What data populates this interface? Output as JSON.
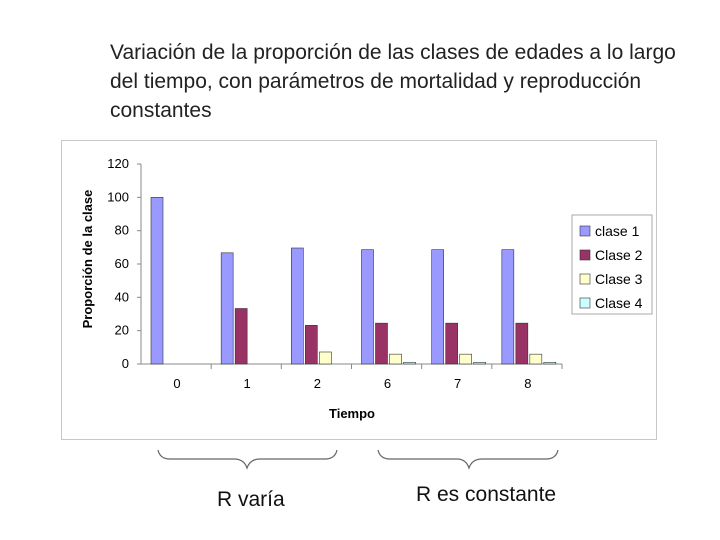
{
  "slide": {
    "title": "Variación de la proporción de las clases de edades a lo largo del tiempo, con parámetros de mortalidad y reproducción constantes"
  },
  "annotations": {
    "left_label": "R varía",
    "right_label": "R es constante"
  },
  "chart_data": {
    "type": "bar",
    "title": "",
    "xlabel": "Tiempo",
    "ylabel": "Proporción de la clase",
    "categories": [
      "0",
      "1",
      "2",
      "6",
      "7",
      "8"
    ],
    "ylim": [
      0,
      120
    ],
    "yticks": [
      0,
      20,
      40,
      60,
      80,
      100,
      120
    ],
    "grid": false,
    "legend_position": "right",
    "series": [
      {
        "name": "clase 1",
        "color": "#9999ff",
        "values": [
          100,
          66.7,
          69.6,
          68.6,
          68.6,
          68.6
        ]
      },
      {
        "name": "Clase 2",
        "color": "#993366",
        "values": [
          0,
          33.3,
          23.2,
          24.5,
          24.5,
          24.5
        ]
      },
      {
        "name": "Clase 3",
        "color": "#ffffcc",
        "values": [
          0,
          0,
          7.2,
          5.9,
          5.9,
          5.9
        ]
      },
      {
        "name": "Clase 4",
        "color": "#ccffff",
        "values": [
          0,
          0,
          0,
          1.0,
          1.0,
          1.0
        ]
      }
    ]
  }
}
